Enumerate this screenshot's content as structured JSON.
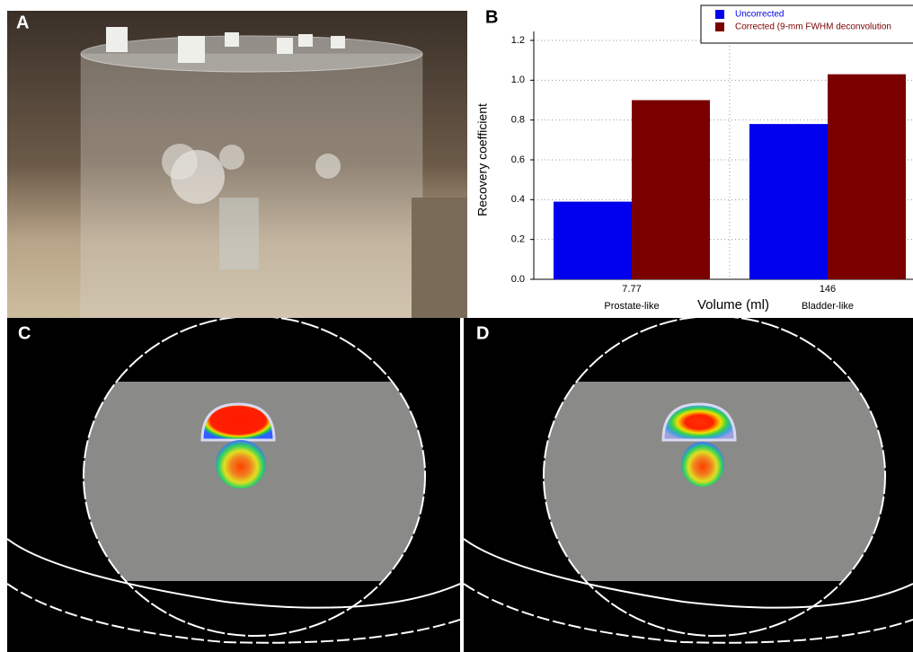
{
  "panels": {
    "a": {
      "label": "A"
    },
    "b": {
      "label": "B"
    },
    "c": {
      "label": "C"
    },
    "d": {
      "label": "D"
    }
  },
  "chart_data": {
    "type": "bar",
    "categories": [
      "7.77",
      "146"
    ],
    "category_descriptions": [
      "Prostate-like",
      "Bladder-like"
    ],
    "xlabel": "Volume (ml)",
    "ylabel": "Recovery coefficient",
    "series": [
      {
        "name": "Uncorrected",
        "color": "#0000ee",
        "values": [
          0.39,
          0.78
        ]
      },
      {
        "name": "Corrected (9-mm FWHM deconvolution",
        "color": "#7a0000",
        "values": [
          0.9,
          1.03
        ]
      }
    ],
    "ylim": [
      0,
      1.2
    ],
    "yticks": [
      {
        "value": 0,
        "label": "0.0"
      },
      0.2,
      0.4,
      0.6,
      0.8,
      {
        "value": 1,
        "label": "1.0"
      },
      1.2
    ],
    "grid": true,
    "legend": "upper-right"
  }
}
